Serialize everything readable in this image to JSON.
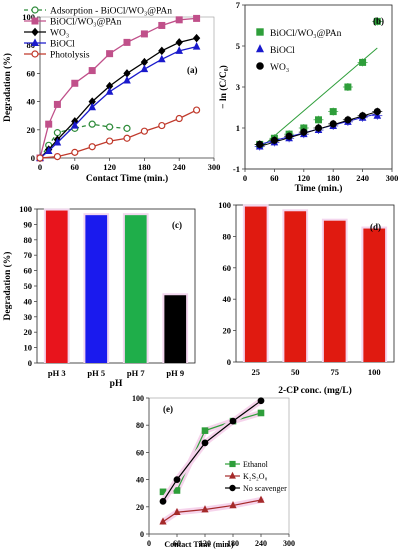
{
  "chart_data": [
    {
      "panel": "(a)",
      "type": "line",
      "xlabel": "Contact Time (min.)",
      "ylabel": "Degradation (%)",
      "xlim": [
        0,
        300
      ],
      "ylim": [
        0,
        100
      ],
      "xticks": [
        0,
        60,
        120,
        180,
        240,
        300
      ],
      "yticks": [
        0,
        20,
        40,
        60,
        80,
        100
      ],
      "legend": "top-left",
      "series": [
        {
          "name": "Adsorption - BiOCl/WO₃@PAn",
          "color": "#2e8b3a",
          "style": "dashed-open-circle",
          "x": [
            0,
            15,
            30,
            60,
            90,
            120,
            150
          ],
          "y": [
            0,
            9,
            18,
            21,
            24,
            22,
            21
          ]
        },
        {
          "name": "BiOCl/WO₃@PAn",
          "color": "#c0508a",
          "style": "square",
          "x": [
            0,
            15,
            30,
            60,
            90,
            120,
            150,
            180,
            210,
            240,
            270
          ],
          "y": [
            0,
            24,
            38,
            53,
            62,
            74,
            82,
            88,
            94,
            98,
            99
          ]
        },
        {
          "name": "WO₃",
          "color": "#000000",
          "style": "diamond",
          "x": [
            0,
            15,
            30,
            60,
            90,
            120,
            150,
            180,
            210,
            240,
            270
          ],
          "y": [
            0,
            6,
            13,
            26,
            40,
            51,
            60,
            68,
            76,
            82,
            85
          ]
        },
        {
          "name": "BiOCl",
          "color": "#1a1acc",
          "style": "triangle",
          "x": [
            0,
            15,
            30,
            60,
            90,
            120,
            150,
            180,
            210,
            240,
            270
          ],
          "y": [
            0,
            5,
            11,
            23,
            36,
            47,
            55,
            63,
            70,
            76,
            79
          ]
        },
        {
          "name": "Photolysis",
          "color": "#c0392b",
          "style": "open-circle",
          "x": [
            0,
            30,
            60,
            90,
            120,
            150,
            180,
            210,
            240,
            270
          ],
          "y": [
            0,
            1,
            4,
            8,
            12,
            14,
            19,
            23,
            28,
            34
          ]
        }
      ]
    },
    {
      "panel": "(b)",
      "type": "scatter",
      "xlabel": "Time (min.)",
      "ylabel": "− ln (C/C₀)",
      "xlim": [
        0,
        300
      ],
      "ylim": [
        -1,
        7
      ],
      "xticks": [
        0,
        60,
        120,
        180,
        240,
        300
      ],
      "yticks": [
        -1,
        1,
        3,
        5,
        7
      ],
      "legend": "top-left",
      "series": [
        {
          "name": "BiOCl/WO₃@PAn",
          "color": "#2e9e3a",
          "style": "square",
          "trend": [
            [
              30,
              0.0
            ],
            [
              270,
              4.9
            ]
          ],
          "x": [
            30,
            60,
            90,
            120,
            150,
            180,
            210,
            240,
            270
          ],
          "y": [
            0.2,
            0.5,
            0.7,
            1.0,
            1.4,
            1.8,
            3.0,
            4.2,
            6.2
          ]
        },
        {
          "name": "BiOCl",
          "color": "#1a1acc",
          "style": "triangle",
          "trend": [
            [
              30,
              0.2
            ],
            [
              270,
              1.7
            ]
          ],
          "x": [
            30,
            60,
            90,
            120,
            150,
            180,
            210,
            240,
            270
          ],
          "y": [
            0.1,
            0.3,
            0.5,
            0.7,
            0.9,
            1.1,
            1.3,
            1.5,
            1.6
          ]
        },
        {
          "name": "WO₃",
          "color": "#000000",
          "style": "circle",
          "trend": [
            [
              30,
              0.1
            ],
            [
              270,
              1.8
            ]
          ],
          "x": [
            30,
            60,
            90,
            120,
            150,
            180,
            210,
            240,
            270
          ],
          "y": [
            0.2,
            0.4,
            0.6,
            0.8,
            1.0,
            1.2,
            1.4,
            1.6,
            1.8
          ]
        }
      ]
    },
    {
      "panel": "(c)",
      "type": "bar",
      "xlabel": "pH",
      "ylabel": "Degradation (%)",
      "ylim": [
        0,
        100
      ],
      "yticks": [
        0,
        10,
        20,
        30,
        40,
        50,
        60,
        70,
        80,
        90,
        100
      ],
      "categories": [
        "pH 3",
        "pH 5",
        "pH 7",
        "pH 9"
      ],
      "values": [
        99,
        96,
        96,
        44
      ],
      "colors": [
        "#e8141c",
        "#1a1aee",
        "#1fae4a",
        "#000000"
      ]
    },
    {
      "panel": "(d)",
      "type": "bar",
      "xlabel": "2-CP conc. (mg/L)",
      "ylabel": "",
      "ylim": [
        0,
        100
      ],
      "yticks": [
        0,
        20,
        40,
        60,
        80,
        100
      ],
      "categories": [
        "25",
        "50",
        "75",
        "100"
      ],
      "values": [
        99,
        96,
        90,
        85
      ],
      "colors": [
        "#e01a10",
        "#e01a10",
        "#e01a10",
        "#e01a10"
      ]
    },
    {
      "panel": "(e)",
      "type": "line",
      "xlabel": "Contact Time (min.)",
      "ylabel": "",
      "xlim": [
        0,
        300
      ],
      "ylim": [
        0,
        100
      ],
      "xticks": [
        0,
        60,
        120,
        180,
        240,
        300
      ],
      "yticks": [
        0,
        20,
        40,
        60,
        80,
        100
      ],
      "legend": "right",
      "series": [
        {
          "name": "Ethanol",
          "color": "#2e9e3a",
          "style": "square",
          "x": [
            30,
            60,
            120,
            180,
            240
          ],
          "y": [
            31,
            32,
            76,
            83,
            89
          ]
        },
        {
          "name": "K₂S₂O₈",
          "color": "#a52a2a",
          "style": "triangle",
          "x": [
            30,
            60,
            120,
            180,
            240
          ],
          "y": [
            9,
            16,
            18,
            21,
            25
          ]
        },
        {
          "name": "No scavenger",
          "color": "#000000",
          "style": "circle",
          "x": [
            30,
            60,
            120,
            180,
            240
          ],
          "y": [
            24,
            40,
            67,
            83,
            98
          ]
        }
      ]
    }
  ]
}
